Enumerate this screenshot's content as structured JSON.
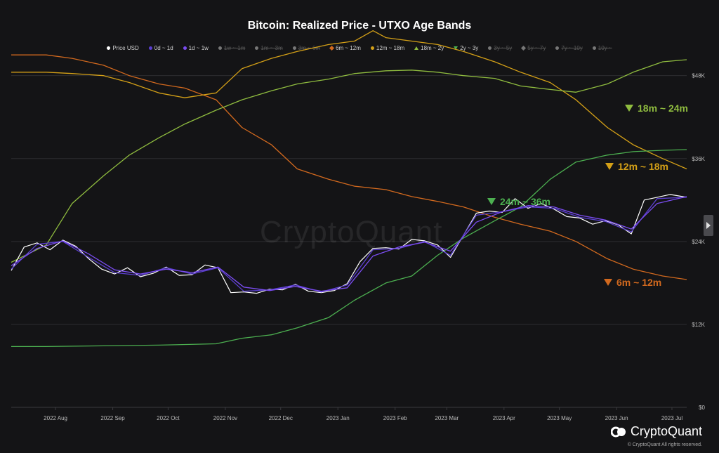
{
  "chart_data": {
    "type": "line",
    "title": "Bitcoin: Realized Price - UTXO Age Bands",
    "legend_position": "top",
    "y_ticks": [
      "$0",
      "$12K",
      "$24K",
      "$36K",
      "$48K"
    ],
    "ylim": [
      0,
      50000
    ],
    "x_ticks": [
      "2022 Aug",
      "2022 Sep",
      "2022 Oct",
      "2022 Nov",
      "2022 Dec",
      "2023 Jan",
      "2023 Feb",
      "2023 Mar",
      "2023 Apr",
      "2023 May",
      "2023 Jun",
      "2023 Jul"
    ],
    "xlim": [
      "2022-07-13",
      "2023-07-14"
    ],
    "legend": [
      {
        "name": "Price USD",
        "color": "#ffffff",
        "marker": "dot",
        "enabled": true
      },
      {
        "name": "0d ~ 1d",
        "color": "#5b3fd1",
        "marker": "dot",
        "enabled": true
      },
      {
        "name": "1d ~ 1w",
        "color": "#7a4cf0",
        "marker": "dot",
        "enabled": true
      },
      {
        "name": "1w ~ 1m",
        "color": "#777777",
        "marker": "dot",
        "enabled": false
      },
      {
        "name": "1m ~ 3m",
        "color": "#777777",
        "marker": "dot",
        "enabled": false
      },
      {
        "name": "3m ~ 6m",
        "color": "#777777",
        "marker": "dot",
        "enabled": false
      },
      {
        "name": "6m ~ 12m",
        "color": "#d2691e",
        "marker": "diamond",
        "enabled": true
      },
      {
        "name": "12m ~ 18m",
        "color": "#d4a017",
        "marker": "dot",
        "enabled": true
      },
      {
        "name": "18m ~ 2y",
        "color": "#8fbc3f",
        "marker": "triangle",
        "enabled": true
      },
      {
        "name": "2y ~ 3y",
        "color": "#4caf50",
        "marker": "triangle-down",
        "enabled": true
      },
      {
        "name": "3y ~ 5y",
        "color": "#777777",
        "marker": "dot",
        "enabled": false
      },
      {
        "name": "5y ~ 7y",
        "color": "#777777",
        "marker": "diamond",
        "enabled": false
      },
      {
        "name": "7y ~ 10y",
        "color": "#777777",
        "marker": "dot",
        "enabled": false
      },
      {
        "name": "10y ~",
        "color": "#777777",
        "marker": "dot",
        "enabled": false
      }
    ],
    "annotations": [
      {
        "text": "18m ~ 24m",
        "color": "#8fbc3f"
      },
      {
        "text": "12m ~ 18m",
        "color": "#d4a017"
      },
      {
        "text": "24m ~ 36m",
        "color": "#4caf50"
      },
      {
        "text": "6m ~ 12m",
        "color": "#d2691e"
      }
    ],
    "series": [
      {
        "name": "6m ~ 12m",
        "color": "#d2691e",
        "x": [
          "2022-07-13",
          "2022-08-01",
          "2022-08-15",
          "2022-09-01",
          "2022-09-15",
          "2022-10-01",
          "2022-10-15",
          "2022-11-01",
          "2022-11-15",
          "2022-12-01",
          "2022-12-15",
          "2023-01-01",
          "2023-01-15",
          "2023-02-01",
          "2023-02-15",
          "2023-03-01",
          "2023-03-15",
          "2023-04-01",
          "2023-04-15",
          "2023-05-01",
          "2023-05-15",
          "2023-06-01",
          "2023-06-15",
          "2023-07-01",
          "2023-07-14"
        ],
        "y": [
          51000,
          51000,
          50500,
          49500,
          48000,
          46800,
          46200,
          44500,
          40500,
          38000,
          34500,
          33000,
          32000,
          31500,
          30500,
          29800,
          29000,
          27500,
          26500,
          25500,
          24000,
          21500,
          20000,
          19000,
          18500
        ]
      },
      {
        "name": "12m ~ 18m",
        "color": "#d4a017",
        "x": [
          "2022-07-13",
          "2022-08-01",
          "2022-08-15",
          "2022-09-01",
          "2022-09-15",
          "2022-10-01",
          "2022-10-15",
          "2022-11-01",
          "2022-11-15",
          "2022-12-01",
          "2022-12-15",
          "2023-01-01",
          "2023-01-15",
          "2023-01-25",
          "2023-02-01",
          "2023-02-15",
          "2023-03-01",
          "2023-03-15",
          "2023-04-01",
          "2023-04-15",
          "2023-05-01",
          "2023-05-15",
          "2023-06-01",
          "2023-06-15",
          "2023-07-01",
          "2023-07-14"
        ],
        "y": [
          48500,
          48500,
          48300,
          48000,
          47000,
          45500,
          44800,
          45500,
          49000,
          50500,
          51500,
          52500,
          53000,
          54500,
          53500,
          53000,
          52500,
          51500,
          50000,
          48500,
          47000,
          44500,
          40500,
          38000,
          36000,
          34500
        ]
      },
      {
        "name": "18m ~ 2y",
        "color": "#8fbc3f",
        "x": [
          "2022-07-13",
          "2022-08-01",
          "2022-08-15",
          "2022-09-01",
          "2022-09-15",
          "2022-10-01",
          "2022-10-15",
          "2022-11-01",
          "2022-11-15",
          "2022-12-01",
          "2022-12-15",
          "2023-01-01",
          "2023-01-15",
          "2023-02-01",
          "2023-02-15",
          "2023-03-01",
          "2023-03-15",
          "2023-04-01",
          "2023-04-15",
          "2023-05-01",
          "2023-05-15",
          "2023-06-01",
          "2023-06-15",
          "2023-07-01",
          "2023-07-14"
        ],
        "y": [
          21000,
          23500,
          29500,
          33500,
          36500,
          39000,
          41000,
          43000,
          44500,
          45800,
          46800,
          47500,
          48300,
          48700,
          48800,
          48500,
          48000,
          47600,
          46500,
          46000,
          45600,
          46800,
          48500,
          50000,
          50300
        ]
      },
      {
        "name": "2y ~ 3y",
        "color": "#4caf50",
        "x": [
          "2022-07-13",
          "2022-08-01",
          "2022-09-01",
          "2022-10-01",
          "2022-11-01",
          "2022-11-15",
          "2022-12-01",
          "2022-12-15",
          "2023-01-01",
          "2023-01-15",
          "2023-02-01",
          "2023-02-15",
          "2023-03-01",
          "2023-03-15",
          "2023-04-01",
          "2023-04-15",
          "2023-05-01",
          "2023-05-15",
          "2023-06-01",
          "2023-06-15",
          "2023-07-01",
          "2023-07-14"
        ],
        "y": [
          8800,
          8800,
          8900,
          9000,
          9200,
          10000,
          10500,
          11500,
          13000,
          15500,
          18000,
          19000,
          22000,
          24500,
          27000,
          29000,
          33000,
          35500,
          36500,
          37000,
          37200,
          37300
        ]
      },
      {
        "name": "Price USD",
        "color": "#ffffff",
        "x": [
          "2022-07-13",
          "2022-07-20",
          "2022-07-27",
          "2022-08-03",
          "2022-08-10",
          "2022-08-17",
          "2022-08-24",
          "2022-08-31",
          "2022-09-07",
          "2022-09-14",
          "2022-09-21",
          "2022-09-28",
          "2022-10-05",
          "2022-10-12",
          "2022-10-19",
          "2022-10-26",
          "2022-11-02",
          "2022-11-09",
          "2022-11-16",
          "2022-11-23",
          "2022-11-30",
          "2022-12-07",
          "2022-12-14",
          "2022-12-21",
          "2022-12-28",
          "2023-01-04",
          "2023-01-11",
          "2023-01-18",
          "2023-01-25",
          "2023-02-01",
          "2023-02-08",
          "2023-02-15",
          "2023-02-22",
          "2023-03-01",
          "2023-03-08",
          "2023-03-15",
          "2023-03-22",
          "2023-03-29",
          "2023-04-05",
          "2023-04-12",
          "2023-04-19",
          "2023-04-26",
          "2023-05-03",
          "2023-05-10",
          "2023-05-17",
          "2023-05-24",
          "2023-05-31",
          "2023-06-07",
          "2023-06-14",
          "2023-06-21",
          "2023-06-28",
          "2023-07-05",
          "2023-07-14"
        ],
        "y": [
          19800,
          23200,
          23800,
          22800,
          24200,
          23300,
          21500,
          20000,
          19300,
          20200,
          18900,
          19400,
          20300,
          19100,
          19200,
          20600,
          20200,
          16600,
          16700,
          16500,
          17100,
          17000,
          17800,
          16800,
          16600,
          16900,
          17900,
          21100,
          23000,
          23100,
          22900,
          24300,
          24100,
          23500,
          21700,
          24900,
          28100,
          28400,
          28200,
          30200,
          28800,
          29500,
          28700,
          27600,
          27400,
          26500,
          27000,
          26400,
          25100,
          30000,
          30400,
          30800,
          30400
        ]
      },
      {
        "name": "0d ~ 1d",
        "color": "#5b3fd1",
        "x": [
          "2022-07-13",
          "2022-07-27",
          "2022-08-10",
          "2022-08-24",
          "2022-09-07",
          "2022-09-21",
          "2022-10-05",
          "2022-10-19",
          "2022-11-02",
          "2022-11-16",
          "2022-11-30",
          "2022-12-14",
          "2022-12-28",
          "2023-01-11",
          "2023-01-25",
          "2023-02-08",
          "2023-02-22",
          "2023-03-08",
          "2023-03-22",
          "2023-04-05",
          "2023-04-19",
          "2023-05-03",
          "2023-05-17",
          "2023-05-31",
          "2023-06-14",
          "2023-06-28",
          "2023-07-14"
        ],
        "y": [
          20000,
          23600,
          24000,
          21700,
          19500,
          19100,
          20200,
          19300,
          20200,
          16800,
          17000,
          17700,
          16700,
          17700,
          22800,
          23000,
          24000,
          22000,
          27800,
          28300,
          29000,
          28800,
          27500,
          26900,
          25400,
          30200,
          30400
        ]
      },
      {
        "name": "1d ~ 1w",
        "color": "#7a4cf0",
        "x": [
          "2022-07-13",
          "2022-07-27",
          "2022-08-10",
          "2022-08-24",
          "2022-09-07",
          "2022-09-21",
          "2022-10-05",
          "2022-10-19",
          "2022-11-02",
          "2022-11-16",
          "2022-11-30",
          "2022-12-14",
          "2022-12-28",
          "2023-01-11",
          "2023-01-25",
          "2023-02-08",
          "2023-02-22",
          "2023-03-08",
          "2023-03-22",
          "2023-04-05",
          "2023-04-19",
          "2023-05-03",
          "2023-05-17",
          "2023-05-31",
          "2023-06-14",
          "2023-06-28",
          "2023-07-14"
        ],
        "y": [
          20500,
          23000,
          24100,
          22200,
          19900,
          19300,
          20000,
          19500,
          20300,
          17400,
          16900,
          17500,
          16800,
          17300,
          21900,
          23200,
          23900,
          22600,
          26800,
          28300,
          29200,
          29000,
          27800,
          27100,
          25800,
          29500,
          30500
        ]
      }
    ]
  },
  "header": {
    "title": "Bitcoin: Realized Price - UTXO Age Bands"
  },
  "watermark": "CryptoQuant",
  "brand": {
    "name": "CryptoQuant",
    "copyright": "© CryptoQuant All rights reserved."
  }
}
